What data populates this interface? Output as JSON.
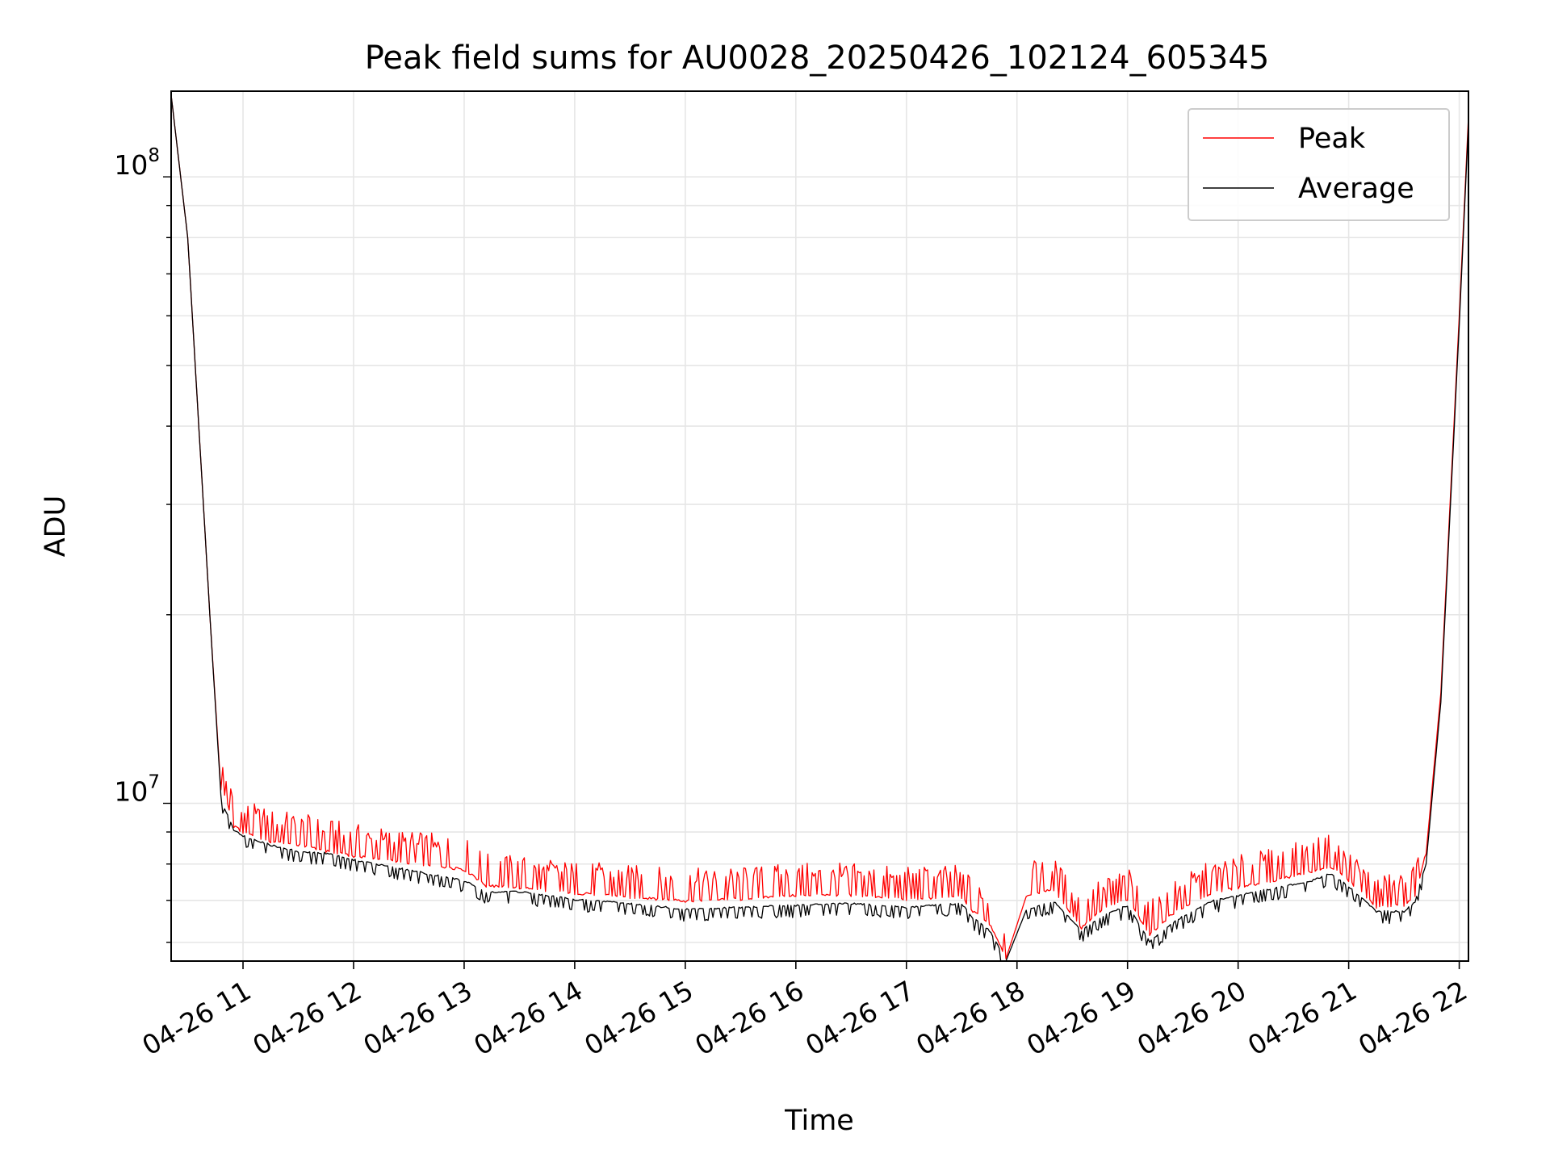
{
  "chart_data": {
    "type": "line",
    "title": "Peak field sums for AU0028_20250426_102124_605345",
    "xlabel": "Time",
    "ylabel": "ADU",
    "y_scale": "log",
    "ylim": [
      5600000,
      137000000
    ],
    "xlim": [
      "2025-04-26 10:21",
      "2025-04-26 22:05"
    ],
    "x_ticks": [
      "04-26 11",
      "04-26 12",
      "04-26 13",
      "04-26 14",
      "04-26 15",
      "04-26 16",
      "04-26 17",
      "04-26 18",
      "04-26 19",
      "04-26 20",
      "04-26 21",
      "04-26 22"
    ],
    "y_ticks": [
      {
        "value": 10000000,
        "base": "10",
        "exp": "7"
      },
      {
        "value": 100000000,
        "base": "10",
        "exp": "8"
      }
    ],
    "grid": true,
    "legend_position": "upper right",
    "series": [
      {
        "name": "Peak",
        "color": "#ff0000",
        "x": [
          "2025-04-26 10:21",
          "2025-04-26 10:30",
          "2025-04-26 10:36",
          "2025-04-26 10:42",
          "2025-04-26 10:48",
          "2025-04-26 10:50",
          "2025-04-26 10:55",
          "2025-04-26 11:00",
          "2025-04-26 11:15",
          "2025-04-26 11:30",
          "2025-04-26 11:45",
          "2025-04-26 12:00",
          "2025-04-26 12:30",
          "2025-04-26 13:00",
          "2025-04-26 13:12",
          "2025-04-26 13:30",
          "2025-04-26 14:00",
          "2025-04-26 14:30",
          "2025-04-26 15:00",
          "2025-04-26 15:30",
          "2025-04-26 16:00",
          "2025-04-26 16:30",
          "2025-04-26 17:00",
          "2025-04-26 17:30",
          "2025-04-26 17:36",
          "2025-04-26 17:45",
          "2025-04-26 17:54",
          "2025-04-26 18:05",
          "2025-04-26 18:20",
          "2025-04-26 18:35",
          "2025-04-26 18:45",
          "2025-04-26 19:00",
          "2025-04-26 19:12",
          "2025-04-26 19:25",
          "2025-04-26 19:45",
          "2025-04-26 20:00",
          "2025-04-26 20:20",
          "2025-04-26 20:40",
          "2025-04-26 20:50",
          "2025-04-26 21:00",
          "2025-04-26 21:15",
          "2025-04-26 21:30",
          "2025-04-26 21:36",
          "2025-04-26 21:42",
          "2025-04-26 21:50",
          "2025-04-26 22:00",
          "2025-04-26 22:05"
        ],
        "y": [
          135000000,
          80000000,
          40000000,
          20000000,
          10500000,
          10300000,
          9150000,
          8950000,
          8650000,
          8550000,
          8350000,
          8200000,
          8000000,
          7800000,
          7350000,
          7300000,
          7150000,
          7050000,
          6950000,
          7000000,
          7100000,
          7100000,
          7000000,
          7050000,
          6700000,
          6400000,
          5650000,
          7100000,
          7250000,
          6300000,
          6700000,
          7000000,
          6150000,
          6650000,
          7150000,
          7300000,
          7500000,
          7750000,
          7900000,
          7500000,
          6800000,
          6850000,
          7100000,
          8300000,
          15000000,
          60000000,
          125000000
        ]
      },
      {
        "name": "Average",
        "color": "#000000",
        "x": [
          "2025-04-26 10:21",
          "2025-04-26 10:30",
          "2025-04-26 10:36",
          "2025-04-26 10:42",
          "2025-04-26 10:48",
          "2025-04-26 10:50",
          "2025-04-26 10:55",
          "2025-04-26 11:00",
          "2025-04-26 11:15",
          "2025-04-26 11:30",
          "2025-04-26 11:45",
          "2025-04-26 12:00",
          "2025-04-26 12:30",
          "2025-04-26 13:00",
          "2025-04-26 13:12",
          "2025-04-26 13:30",
          "2025-04-26 14:00",
          "2025-04-26 14:30",
          "2025-04-26 15:00",
          "2025-04-26 15:30",
          "2025-04-26 16:00",
          "2025-04-26 16:30",
          "2025-04-26 17:00",
          "2025-04-26 17:30",
          "2025-04-26 17:36",
          "2025-04-26 17:45",
          "2025-04-26 17:54",
          "2025-04-26 18:05",
          "2025-04-26 18:20",
          "2025-04-26 18:35",
          "2025-04-26 18:45",
          "2025-04-26 19:00",
          "2025-04-26 19:12",
          "2025-04-26 19:25",
          "2025-04-26 19:45",
          "2025-04-26 20:00",
          "2025-04-26 20:20",
          "2025-04-26 20:40",
          "2025-04-26 20:50",
          "2025-04-26 21:00",
          "2025-04-26 21:15",
          "2025-04-26 21:30",
          "2025-04-26 21:36",
          "2025-04-26 21:42",
          "2025-04-26 21:50",
          "2025-04-26 22:00",
          "2025-04-26 22:05"
        ],
        "y": [
          135000000,
          80000000,
          40000000,
          20000000,
          10300000,
          9800000,
          9050000,
          8850000,
          8550000,
          8350000,
          8300000,
          8100000,
          7800000,
          7500000,
          7200000,
          7200000,
          7000000,
          6900000,
          6750000,
          6800000,
          6850000,
          6900000,
          6800000,
          6900000,
          6550000,
          6250000,
          5600000,
          6750000,
          6950000,
          6250000,
          6550000,
          6850000,
          6000000,
          6450000,
          6950000,
          7100000,
          7300000,
          7500000,
          7700000,
          7350000,
          6700000,
          6700000,
          6950000,
          8000000,
          14500000,
          58000000,
          122000000
        ]
      }
    ]
  }
}
